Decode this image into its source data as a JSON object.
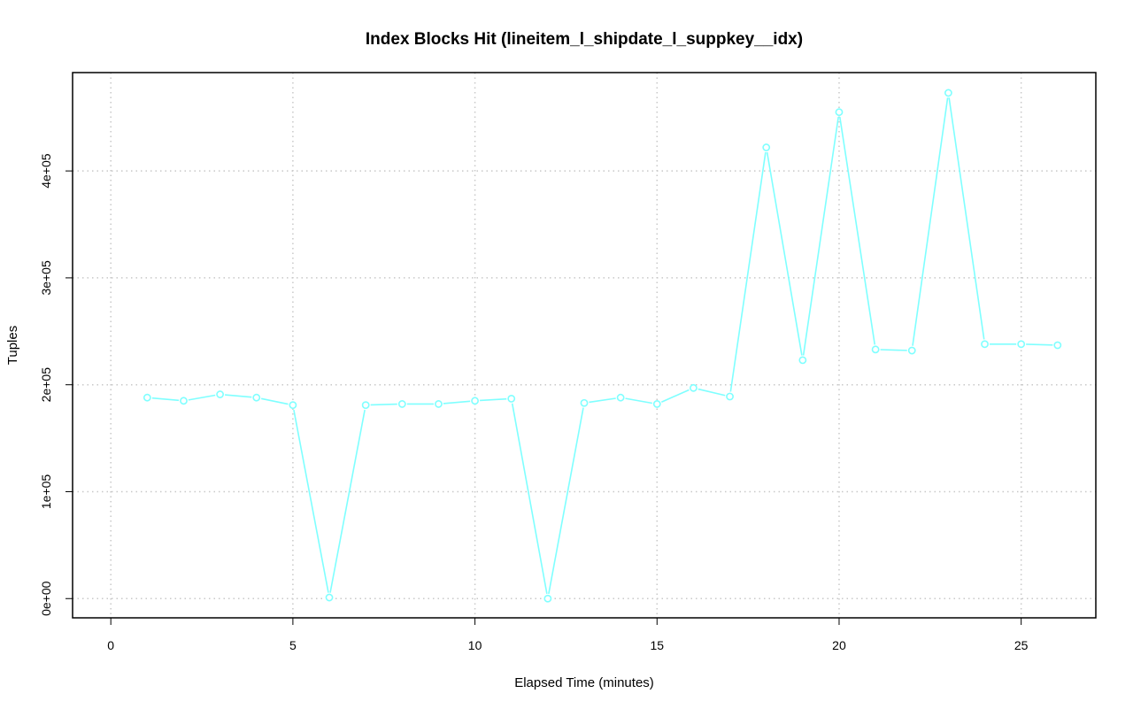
{
  "chart_data": {
    "type": "line",
    "title": "Index Blocks Hit (lineitem_l_shipdate_l_suppkey__idx)",
    "xlabel": "Elapsed Time (minutes)",
    "ylabel": "Tuples",
    "xlim": [
      -1.05,
      27.05
    ],
    "ylim": [
      -18000,
      492000
    ],
    "x_ticks": [
      0,
      5,
      10,
      15,
      20,
      25
    ],
    "x_tick_labels": [
      "0",
      "5",
      "10",
      "15",
      "20",
      "25"
    ],
    "y_ticks": [
      0,
      100000,
      200000,
      300000,
      400000
    ],
    "y_tick_labels": [
      "0e+00",
      "1e+05",
      "2e+05",
      "3e+05",
      "4e+05"
    ],
    "grid": true,
    "series_color": "#7fffff",
    "series": [
      {
        "x": [
          1,
          2,
          3,
          4,
          5,
          6,
          7,
          8,
          9,
          10,
          11,
          12,
          13,
          14,
          15,
          16,
          17,
          18,
          19,
          20,
          21,
          22,
          23,
          24,
          25,
          26
        ],
        "values": [
          188000,
          185000,
          191000,
          188000,
          181000,
          1000,
          181000,
          182000,
          182000,
          185000,
          187000,
          0,
          183000,
          188000,
          182000,
          197000,
          189000,
          422000,
          223000,
          455000,
          233000,
          232000,
          473000,
          238000,
          238000,
          237000
        ]
      }
    ]
  }
}
